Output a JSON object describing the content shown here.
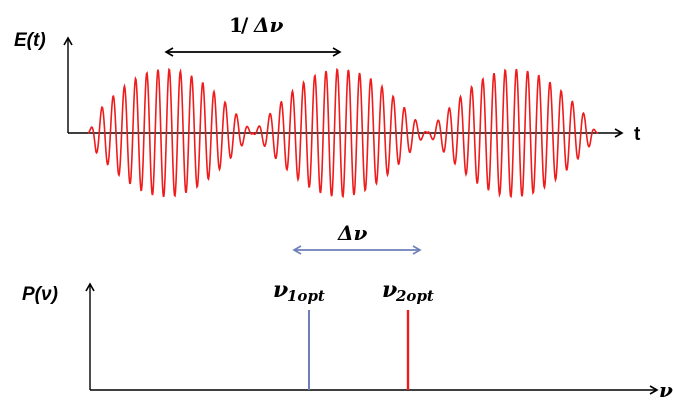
{
  "top_plot": {
    "y_label": "E(t)",
    "x_label": "t",
    "period_label_num": "1",
    "period_label_den": "Δν",
    "wave_color": "#ee1c1c"
  },
  "bottom_plot": {
    "y_label": "P(ν)",
    "x_label": "ν",
    "delta_label": "Δν",
    "line1_symbol": "ν",
    "line1_sub": "1opt",
    "line2_symbol": "ν",
    "line2_sub": "2opt",
    "line1_color": "#6e7fb8",
    "line2_color": "#ee1c1c",
    "delta_arrow_color": "#6e7fb8"
  }
}
